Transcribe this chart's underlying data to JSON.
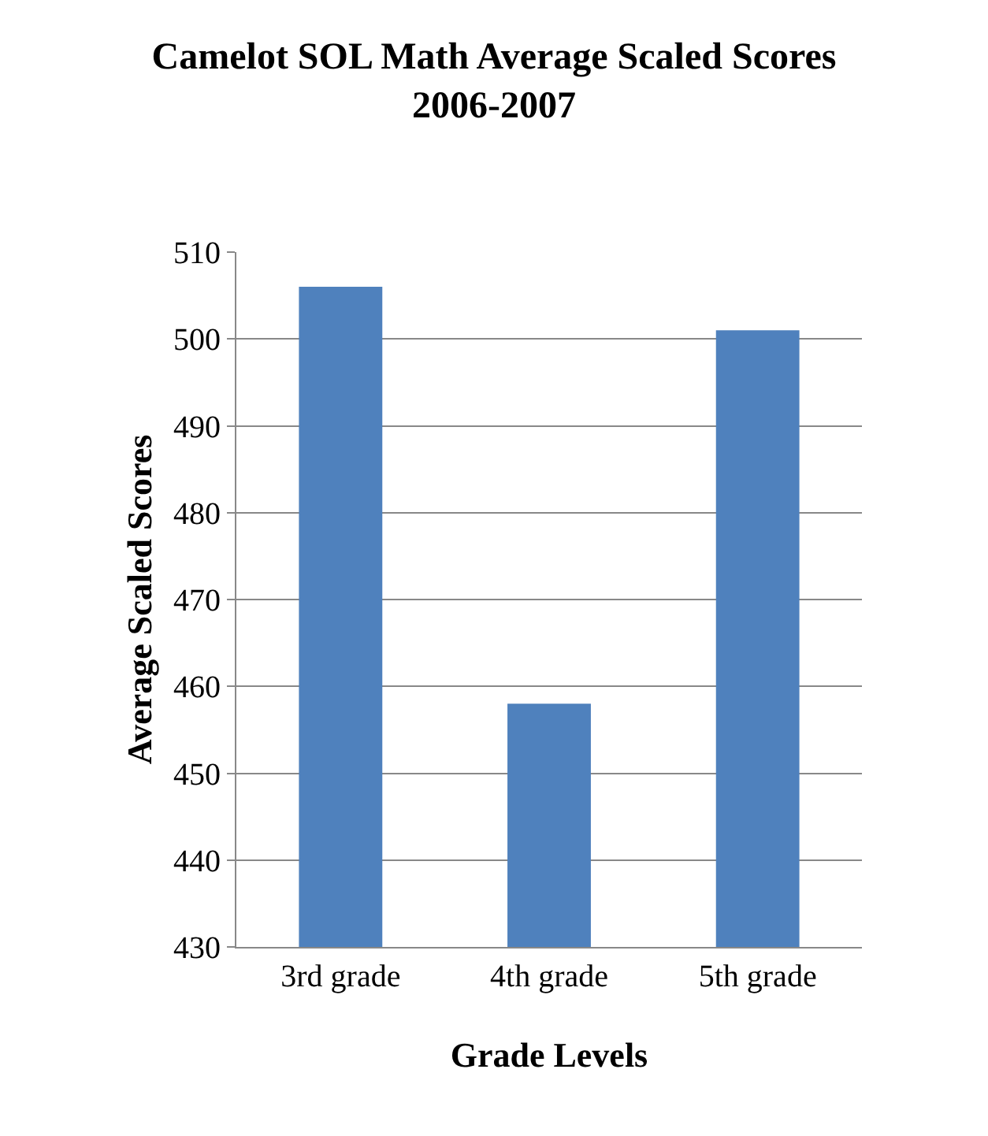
{
  "chart_data": {
    "type": "bar",
    "title": "Camelot SOL Math Average Scaled Scores\n2006-2007",
    "xlabel": "Grade Levels",
    "ylabel": "Average Scaled Scores",
    "categories": [
      "3rd grade",
      "4th grade",
      "5th grade"
    ],
    "values": [
      506,
      458,
      501
    ],
    "color": "#4f81bd",
    "ylim": [
      430,
      510
    ],
    "yticks": [
      430,
      440,
      450,
      460,
      470,
      480,
      490,
      500,
      510
    ],
    "grid": "y"
  }
}
